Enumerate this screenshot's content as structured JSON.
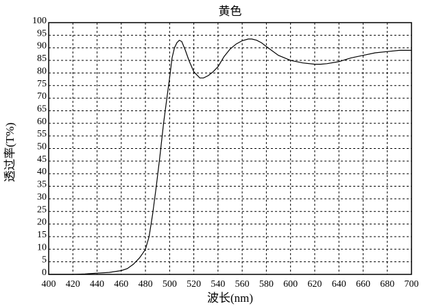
{
  "chart_data": {
    "type": "line",
    "title": "黄色",
    "xlabel": "波长(nm)",
    "ylabel": "透过率(T%)",
    "xlim": [
      400,
      700
    ],
    "ylim": [
      0,
      100
    ],
    "xticks": [
      400,
      420,
      440,
      460,
      480,
      500,
      520,
      540,
      560,
      580,
      600,
      620,
      640,
      660,
      680,
      700
    ],
    "yticks": [
      0,
      5,
      10,
      15,
      20,
      25,
      30,
      35,
      40,
      45,
      50,
      55,
      60,
      65,
      70,
      75,
      80,
      85,
      90,
      95,
      100
    ],
    "grid": true,
    "line_color": "#000000",
    "series": [
      {
        "x": [
          400,
          420,
          430,
          440,
          450,
          460,
          465,
          470,
          475,
          478,
          480,
          483,
          486,
          489,
          492,
          495,
          498,
          500,
          502,
          504,
          506,
          508,
          510,
          513,
          516,
          520,
          525,
          528,
          532,
          536,
          540,
          545,
          550,
          555,
          560,
          565,
          568,
          572,
          576,
          580,
          590,
          600,
          610,
          620,
          625,
          630,
          640,
          650,
          660,
          670,
          680,
          690,
          700
        ],
        "y": [
          0,
          0,
          0.2,
          0.5,
          0.8,
          1.5,
          2.3,
          4,
          6.5,
          8.5,
          10,
          15,
          24,
          35,
          47,
          60,
          71,
          78,
          86,
          90,
          92,
          93,
          92.5,
          89,
          85,
          80.5,
          78,
          78,
          79,
          80.5,
          82.5,
          86.5,
          89.5,
          91.5,
          92.8,
          93.5,
          93.5,
          93,
          92,
          90.5,
          87,
          85,
          84,
          83.5,
          83.5,
          83.7,
          84.5,
          86,
          87,
          88,
          88.5,
          89,
          89
        ]
      }
    ]
  }
}
